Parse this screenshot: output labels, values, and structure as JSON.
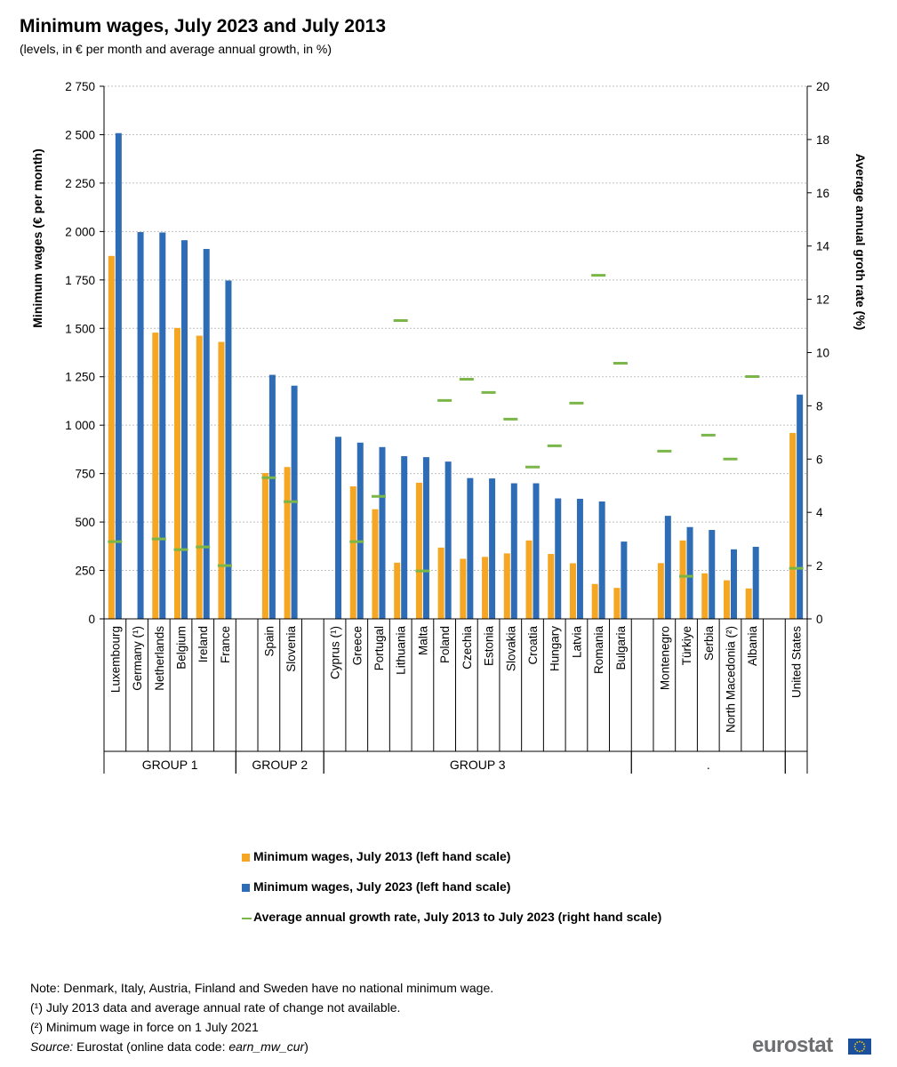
{
  "header": {
    "title": "Minimum wages, July 2023 and July 2013",
    "subtitle": "(levels, in € per month and average annual growth, in %)"
  },
  "legend": {
    "items": [
      {
        "label": "Minimum wages, July 2013 (left hand scale)",
        "color": "#f5a623"
      },
      {
        "label": "Minimum wages, July 2023 (left hand scale)",
        "color": "#2e6db5"
      },
      {
        "label": "Average annual growth rate, July 2013 to July 2023 (right hand scale)",
        "color": "#7ab648"
      }
    ]
  },
  "notes": {
    "note1": "Note: Denmark, Italy, Austria, Finland and Sweden have no national minimum wage.",
    "note2": "(¹) July 2013 data and average annual rate of change not available.",
    "note3": "(²) Minimum wage in force on 1 July 2021",
    "source_label": "Source:",
    "source_text": " Eurostat (online data code: ",
    "source_code": "earn_mw_cur",
    "source_end": ")"
  },
  "logo": {
    "text": "eurostat"
  },
  "chart_data": {
    "type": "bar",
    "title": "Minimum wages, July 2023 and July 2013",
    "ylabel": "Minimum wages (€ per month)",
    "y2label": "Average annual groth rate (%)",
    "ylim": [
      0,
      2750
    ],
    "y2lim": [
      0,
      20
    ],
    "yticks": [
      0,
      250,
      500,
      750,
      1000,
      1250,
      1500,
      1750,
      2000,
      2250,
      2500,
      2750
    ],
    "ytick_labels": [
      "0",
      "250",
      "500",
      "750",
      "1 000",
      "1 250",
      "1 500",
      "1 750",
      "2 000",
      "2 250",
      "2 500",
      "2 750"
    ],
    "y2ticks": [
      0,
      2,
      4,
      6,
      8,
      10,
      12,
      14,
      16,
      18,
      20
    ],
    "grid": true,
    "legend_position": "bottom",
    "categories": [
      "Luxembourg",
      "Germany (¹)",
      "Netherlands",
      "Belgium",
      "Ireland",
      "France",
      "",
      "Spain",
      "Slovenia",
      "",
      "Cyprus (¹)",
      "Greece",
      "Portugal",
      "Lithuania",
      "Malta",
      "Poland",
      "Czechia",
      "Estonia",
      "Slovakia",
      "Croatia",
      "Hungary",
      "Latvia",
      "Romania",
      "Bulgaria",
      "",
      "Montenegro",
      "Türkiye",
      "Serbia",
      "North Macedonia (²)",
      "Albania",
      "",
      "United States"
    ],
    "series": [
      {
        "name": "Minimum wages, July 2013 (left hand scale)",
        "axis": "left",
        "values": [
          1874,
          null,
          1478,
          1502,
          1462,
          1430,
          null,
          753,
          784,
          null,
          null,
          684,
          566,
          290,
          703,
          368,
          310,
          320,
          338,
          405,
          335,
          287,
          180,
          160,
          null,
          288,
          405,
          235,
          199,
          157,
          null,
          960
        ]
      },
      {
        "name": "Minimum wages, July 2023 (left hand scale)",
        "axis": "left",
        "values": [
          2508,
          1997,
          1995,
          1955,
          1910,
          1747,
          null,
          1260,
          1204,
          null,
          940,
          910,
          887,
          840,
          835,
          812,
          727,
          725,
          700,
          700,
          622,
          620,
          606,
          399,
          null,
          532,
          474,
          459,
          359,
          372,
          null,
          1158
        ]
      },
      {
        "name": "Average annual growth rate, July 2013 to July 2023 (right hand scale)",
        "axis": "right",
        "values": [
          2.9,
          null,
          3.0,
          2.6,
          2.7,
          2.0,
          null,
          5.3,
          4.4,
          null,
          null,
          2.9,
          4.6,
          11.2,
          1.8,
          8.2,
          9.0,
          8.5,
          7.5,
          5.7,
          6.5,
          8.1,
          12.9,
          9.6,
          null,
          6.3,
          1.6,
          6.9,
          6.0,
          9.1,
          null,
          1.9
        ]
      }
    ],
    "groups": [
      {
        "label": "GROUP 1"
      },
      {
        "label": "GROUP 2"
      },
      {
        "label": "GROUP 3"
      },
      {
        "label": "."
      },
      {
        "label": ""
      }
    ]
  }
}
